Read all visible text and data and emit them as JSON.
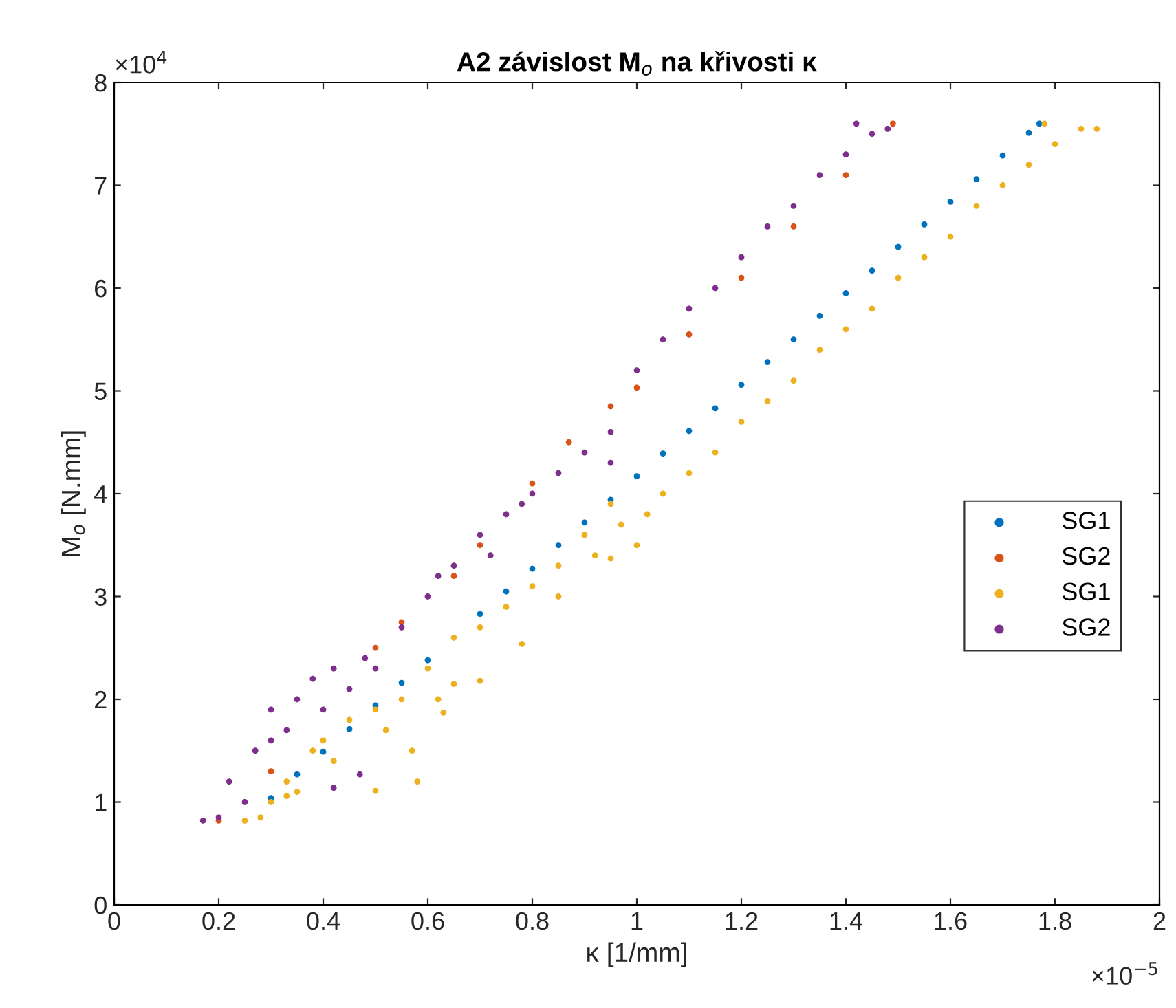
{
  "chart_data": {
    "type": "scatter",
    "title": "A2 závislost M$_{o}$ na křivosti κ",
    "xlabel": "κ [1/mm]",
    "ylabel": "M$_{o}$ [N.mm]",
    "annotations": [
      "×10$^{4}$",
      "×10$^{−5}$"
    ],
    "xlim": [
      0,
      2
    ],
    "xticks": [
      0,
      0.2,
      0.4,
      0.6,
      0.8,
      1,
      1.2,
      1.4,
      1.6,
      1.8,
      2
    ],
    "ylim": [
      0,
      8
    ],
    "yticks": [
      0,
      1,
      2,
      3,
      4,
      5,
      6,
      7,
      8
    ],
    "grid": false,
    "legend": "right",
    "marker": "circle",
    "series": [
      {
        "name": "SG1",
        "color": "#0072bd",
        "x": [
          0.3,
          0.35,
          0.4,
          0.45,
          0.5,
          0.55,
          0.6,
          0.7,
          0.75,
          0.8,
          0.85,
          0.9,
          0.95,
          1.0,
          1.05,
          1.1,
          1.15,
          1.2,
          1.25,
          1.3,
          1.35,
          1.4,
          1.45,
          1.5,
          1.55,
          1.6,
          1.65,
          1.7,
          1.75,
          1.77
        ],
        "values": [
          1.04,
          1.27,
          1.49,
          1.71,
          1.94,
          2.16,
          2.38,
          2.83,
          3.05,
          3.27,
          3.5,
          3.72,
          3.94,
          4.17,
          4.39,
          4.61,
          4.83,
          5.06,
          5.28,
          5.5,
          5.73,
          5.95,
          6.17,
          6.4,
          6.62,
          6.84,
          7.06,
          7.29,
          7.51,
          7.6
        ]
      },
      {
        "name": "SG2",
        "color": "#d95319",
        "x": [
          0.2,
          0.3,
          0.5,
          0.55,
          0.65,
          0.7,
          0.8,
          0.87,
          0.95,
          1.0,
          1.1,
          1.2,
          1.3,
          1.4,
          1.49
        ],
        "values": [
          0.82,
          1.3,
          2.5,
          2.75,
          3.2,
          3.5,
          4.1,
          4.5,
          4.85,
          5.03,
          5.55,
          6.1,
          6.6,
          7.1,
          7.6
        ]
      },
      {
        "name": "SG1",
        "color": "#edb120",
        "x": [
          0.25,
          0.28,
          0.3,
          0.33,
          0.35,
          0.38,
          0.4,
          0.42,
          0.45,
          0.5,
          0.52,
          0.55,
          0.6,
          0.62,
          0.65,
          0.7,
          0.75,
          0.8,
          0.85,
          0.9,
          0.92,
          0.95,
          0.97,
          1.0,
          1.02,
          1.05,
          1.1,
          1.15,
          1.2,
          1.25,
          1.3,
          1.35,
          1.4,
          1.45,
          1.5,
          1.55,
          1.6,
          1.65,
          1.7,
          1.75,
          1.8,
          1.85,
          1.88,
          1.78,
          0.33,
          0.5,
          0.58,
          0.57,
          0.63,
          0.65,
          0.7,
          0.78,
          0.85,
          0.95
        ],
        "values": [
          0.82,
          0.85,
          1.0,
          1.2,
          1.1,
          1.5,
          1.6,
          1.4,
          1.8,
          1.9,
          1.7,
          2.0,
          2.3,
          2.0,
          2.6,
          2.7,
          2.9,
          3.1,
          3.3,
          3.6,
          3.4,
          3.9,
          3.7,
          3.5,
          3.8,
          4.0,
          4.2,
          4.4,
          4.7,
          4.9,
          5.1,
          5.4,
          5.6,
          5.8,
          6.1,
          6.3,
          6.5,
          6.8,
          7.0,
          7.2,
          7.4,
          7.55,
          7.55,
          7.6,
          1.06,
          1.11,
          1.2,
          1.5,
          1.87,
          2.15,
          2.18,
          2.54,
          3.0,
          3.37
        ]
      },
      {
        "name": "SG2",
        "color": "#7e2f8e",
        "x": [
          0.17,
          0.2,
          0.22,
          0.25,
          0.27,
          0.3,
          0.3,
          0.33,
          0.35,
          0.38,
          0.4,
          0.42,
          0.45,
          0.48,
          0.5,
          0.55,
          0.6,
          0.62,
          0.65,
          0.7,
          0.72,
          0.75,
          0.78,
          0.8,
          0.85,
          0.9,
          0.95,
          0.95,
          1.0,
          1.05,
          1.1,
          1.15,
          1.2,
          1.25,
          1.3,
          1.35,
          1.4,
          1.45,
          1.42,
          1.48,
          0.42,
          0.47
        ],
        "values": [
          0.82,
          0.85,
          1.2,
          1.0,
          1.5,
          1.6,
          1.9,
          1.7,
          2.0,
          2.2,
          1.9,
          2.3,
          2.1,
          2.4,
          2.3,
          2.7,
          3.0,
          3.2,
          3.3,
          3.6,
          3.4,
          3.8,
          3.9,
          4.0,
          4.2,
          4.4,
          4.6,
          4.3,
          5.2,
          5.5,
          5.8,
          6.0,
          6.3,
          6.6,
          6.8,
          7.1,
          7.3,
          7.5,
          7.6,
          7.55,
          1.14,
          1.27
        ]
      }
    ]
  }
}
